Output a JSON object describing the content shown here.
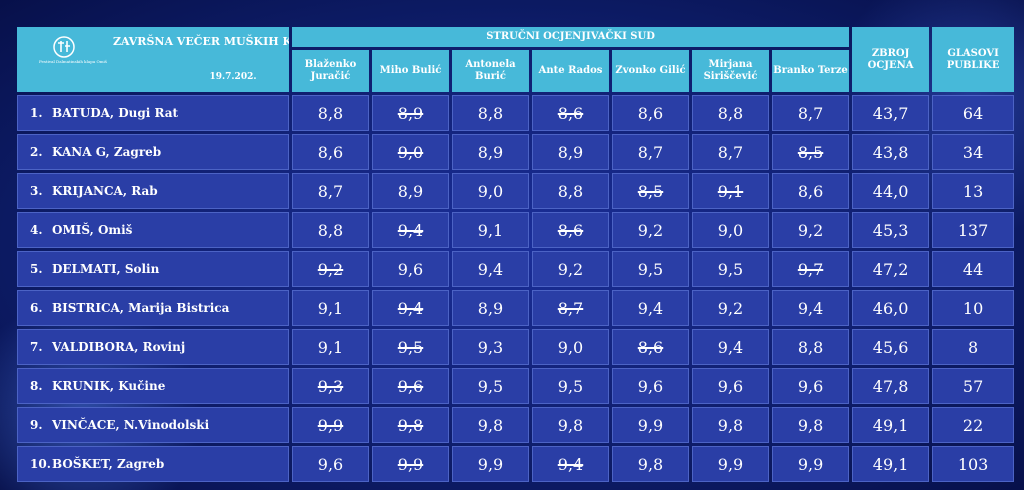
{
  "event": {
    "title": "ZAVRŠNA VEČER MUŠKIH KLAPA",
    "date": "19.7.202.",
    "logo_text": "Festival Dalmatinskih klapa Omiš"
  },
  "headers": {
    "jury_group": "STRUČNI OCJENJIVAČKI SUD",
    "judges": [
      "Blaženko Juračić",
      "Miho Bulić",
      "Antonela Burić",
      "Ante Rados",
      "Zvonko Gilić",
      "Mirjana Siriščević",
      "Branko Terze"
    ],
    "total": "ZBROJ OCJENA",
    "votes": "GLASOVI PUBLIKE"
  },
  "rows": [
    {
      "rank": "1.",
      "name": "BATUDA, Dugi Rat",
      "scores": [
        "8,8",
        "8,9",
        "8,8",
        "8,6",
        "8,6",
        "8,8",
        "8,7"
      ],
      "struck": [
        1,
        3
      ],
      "total": "43,7",
      "votes": "64"
    },
    {
      "rank": "2.",
      "name": "KANA G, Zagreb",
      "scores": [
        "8,6",
        "9,0",
        "8,9",
        "8,9",
        "8,7",
        "8,7",
        "8,5"
      ],
      "struck": [
        1,
        6
      ],
      "total": "43,8",
      "votes": "34"
    },
    {
      "rank": "3.",
      "name": "KRIJANCA, Rab",
      "scores": [
        "8,7",
        "8,9",
        "9,0",
        "8,8",
        "8,5",
        "9,1",
        "8,6"
      ],
      "struck": [
        4,
        5
      ],
      "total": "44,0",
      "votes": "13"
    },
    {
      "rank": "4.",
      "name": "OMIŠ, Omiš",
      "scores": [
        "8,8",
        "9,4",
        "9,1",
        "8,6",
        "9,2",
        "9,0",
        "9,2"
      ],
      "struck": [
        1,
        3
      ],
      "total": "45,3",
      "votes": "137"
    },
    {
      "rank": "5.",
      "name": "DELMATI, Solin",
      "scores": [
        "9,2",
        "9,6",
        "9,4",
        "9,2",
        "9,5",
        "9,5",
        "9,7"
      ],
      "struck": [
        0,
        6
      ],
      "total": "47,2",
      "votes": "44"
    },
    {
      "rank": "6.",
      "name": "BISTRICA, Marija Bistrica",
      "scores": [
        "9,1",
        "9,4",
        "8,9",
        "8,7",
        "9,4",
        "9,2",
        "9,4"
      ],
      "struck": [
        1,
        3
      ],
      "total": "46,0",
      "votes": "10"
    },
    {
      "rank": "7.",
      "name": "VALDIBORA, Rovinj",
      "scores": [
        "9,1",
        "9,5",
        "9,3",
        "9,0",
        "8,6",
        "9,4",
        "8,8"
      ],
      "struck": [
        1,
        4
      ],
      "total": "45,6",
      "votes": "8"
    },
    {
      "rank": "8.",
      "name": "KRUNIK, Kučine",
      "scores": [
        "9,3",
        "9,6",
        "9,5",
        "9,5",
        "9,6",
        "9,6",
        "9,6"
      ],
      "struck": [
        0,
        1
      ],
      "total": "47,8",
      "votes": "57"
    },
    {
      "rank": "9.",
      "name": "VINČACE, N.Vinodolski",
      "scores": [
        "9,9",
        "9,8",
        "9,8",
        "9,8",
        "9,9",
        "9,8",
        "9,8"
      ],
      "struck": [
        0,
        1
      ],
      "total": "49,1",
      "votes": "22"
    },
    {
      "rank": "10.",
      "name": "BOŠKET, Zagreb",
      "scores": [
        "9,6",
        "9,9",
        "9,9",
        "9,4",
        "9,8",
        "9,9",
        "9,9"
      ],
      "struck": [
        1,
        3
      ],
      "total": "49,1",
      "votes": "103"
    }
  ],
  "colors": {
    "header_bg": "#47b9d9",
    "cell_bg": "#2a3ea6",
    "page_bg": "#0c1a62",
    "text": "#ffffff"
  }
}
